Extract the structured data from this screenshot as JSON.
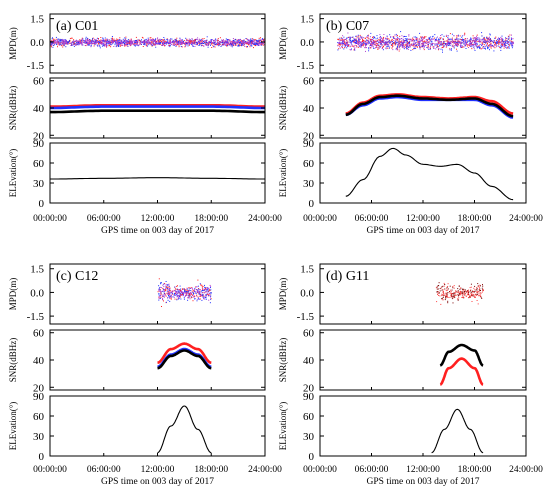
{
  "chart_data": [
    {
      "type": "scatter",
      "panel_label": "(a) C01",
      "xlabel": "GPS time on 003 day of 2017",
      "xticks": [
        "00:00:00",
        "06:00:00",
        "12:00:00",
        "18:00:00",
        "24:00:00"
      ],
      "xlim_hours": [
        0,
        24
      ],
      "subplots": [
        {
          "ylabel": "MPD(m)",
          "yticks": [
            "1.5",
            "0.0",
            "-1.5"
          ],
          "ylim": [
            -2.0,
            1.8
          ],
          "series": [
            {
              "color": "#ff2020",
              "span_hours": [
                0,
                24
              ],
              "center": 0.0,
              "spread": 0.25
            },
            {
              "color": "#2030ff",
              "span_hours": [
                0,
                24
              ],
              "center": 0.0,
              "spread": 0.25
            },
            {
              "color": "#b040d0",
              "span_hours": [
                0,
                24
              ],
              "center": 0.0,
              "spread": 0.2
            }
          ]
        },
        {
          "ylabel": "SNR(dBHz)",
          "yticks": [
            "60",
            "40",
            "20"
          ],
          "ylim": [
            18,
            62
          ],
          "series": [
            {
              "color": "#ff2020",
              "x": [
                0,
                6,
                12,
                18,
                24
              ],
              "y": [
                41,
                42,
                42,
                42,
                41
              ]
            },
            {
              "color": "#2030ff",
              "x": [
                0,
                6,
                12,
                18,
                24
              ],
              "y": [
                40,
                41,
                41,
                41,
                40
              ]
            },
            {
              "color": "#000000",
              "x": [
                0,
                6,
                12,
                18,
                24
              ],
              "y": [
                37,
                38,
                38,
                38,
                37
              ]
            }
          ]
        },
        {
          "ylabel": "ELEvation(°)",
          "yticks": [
            "90",
            "60",
            "30",
            "0"
          ],
          "ylim": [
            0,
            90
          ],
          "series": [
            {
              "color": "#000000",
              "x": [
                0,
                6,
                12,
                18,
                24
              ],
              "y": [
                36,
                37,
                38,
                37,
                36
              ]
            }
          ]
        }
      ]
    },
    {
      "type": "scatter",
      "panel_label": "(b) C07",
      "xlabel": "GPS time on 003 day of 2017",
      "xticks": [
        "00:00:00",
        "06:00:00",
        "12:00:00",
        "18:00:00",
        "24:00:00"
      ],
      "xlim_hours": [
        0,
        24
      ],
      "subplots": [
        {
          "ylabel": "MPD(m)",
          "yticks": [
            "1.5",
            "0.0",
            "-1.5"
          ],
          "ylim": [
            -2.0,
            1.8
          ],
          "series": [
            {
              "color": "#ff2020",
              "span_hours": [
                2,
                22.5
              ],
              "center": 0.0,
              "spread": 0.4
            },
            {
              "color": "#2030ff",
              "span_hours": [
                2,
                22.5
              ],
              "center": 0.0,
              "spread": 0.45
            },
            {
              "color": "#b040d0",
              "span_hours": [
                2,
                22.5
              ],
              "center": 0.0,
              "spread": 0.4
            }
          ]
        },
        {
          "ylabel": "SNR(dBHz)",
          "yticks": [
            "60",
            "40",
            "20"
          ],
          "ylim": [
            18,
            62
          ],
          "series": [
            {
              "color": "#ff2020",
              "x": [
                3,
                5,
                7,
                9,
                12,
                15,
                18,
                20,
                22.5
              ],
              "y": [
                36,
                44,
                49,
                50,
                48,
                47,
                48,
                45,
                36
              ]
            },
            {
              "color": "#2030ff",
              "x": [
                3,
                5,
                7,
                9,
                12,
                15,
                18,
                20,
                22.5
              ],
              "y": [
                35,
                42,
                47,
                48,
                46,
                46,
                46,
                42,
                33
              ]
            },
            {
              "color": "#000000",
              "x": [
                3,
                5,
                7,
                9,
                12,
                15,
                18,
                20,
                22.5
              ],
              "y": [
                35,
                43,
                48,
                49,
                47,
                46,
                47,
                43,
                34
              ]
            }
          ]
        },
        {
          "ylabel": "ELEvation(°)",
          "yticks": [
            "90",
            "60",
            "30",
            "0"
          ],
          "ylim": [
            0,
            90
          ],
          "series": [
            {
              "color": "#000000",
              "x": [
                3,
                5,
                7,
                8.5,
                10,
                12,
                14,
                16,
                18,
                20,
                22.5
              ],
              "y": [
                10,
                35,
                70,
                82,
                72,
                58,
                55,
                58,
                45,
                25,
                5
              ]
            }
          ]
        }
      ]
    },
    {
      "type": "scatter",
      "panel_label": "(c) C12",
      "xlabel": "GPS time on 003 day of 2017",
      "xticks": [
        "00:00:00",
        "06:00:00",
        "12:00:00",
        "18:00:00",
        "24:00:00"
      ],
      "xlim_hours": [
        0,
        24
      ],
      "subplots": [
        {
          "ylabel": "MPD(m)",
          "yticks": [
            "1.5",
            "0.0",
            "-1.5"
          ],
          "ylim": [
            -2.0,
            1.8
          ],
          "series": [
            {
              "color": "#ff2020",
              "span_hours": [
                12,
                18
              ],
              "center": 0.0,
              "spread": 0.45
            },
            {
              "color": "#2030ff",
              "span_hours": [
                12,
                18
              ],
              "center": 0.0,
              "spread": 0.45
            },
            {
              "color": "#b040d0",
              "span_hours": [
                12,
                18
              ],
              "center": 0.0,
              "spread": 0.4
            }
          ]
        },
        {
          "ylabel": "SNR(dBHz)",
          "yticks": [
            "60",
            "40",
            "20"
          ],
          "ylim": [
            18,
            62
          ],
          "series": [
            {
              "color": "#ff2020",
              "x": [
                12,
                13.5,
                15,
                16.5,
                18
              ],
              "y": [
                38,
                48,
                52,
                48,
                38
              ]
            },
            {
              "color": "#2030ff",
              "x": [
                12,
                13.5,
                15,
                16.5,
                18
              ],
              "y": [
                35,
                44,
                48,
                44,
                35
              ]
            },
            {
              "color": "#000000",
              "x": [
                12,
                13.5,
                15,
                16.5,
                18
              ],
              "y": [
                34,
                43,
                47,
                43,
                34
              ]
            }
          ]
        },
        {
          "ylabel": "ELEvation(°)",
          "yticks": [
            "90",
            "60",
            "30",
            "0"
          ],
          "ylim": [
            0,
            90
          ],
          "series": [
            {
              "color": "#000000",
              "x": [
                12,
                13.5,
                15,
                16.5,
                18
              ],
              "y": [
                5,
                45,
                75,
                40,
                5
              ]
            }
          ]
        }
      ]
    },
    {
      "type": "scatter",
      "panel_label": "(d) G11",
      "xlabel": "GPS time on 003 day of 2017",
      "xticks": [
        "00:00:00",
        "06:00:00",
        "12:00:00",
        "18:00:00",
        "24:00:00"
      ],
      "xlim_hours": [
        0,
        24
      ],
      "subplots": [
        {
          "ylabel": "MPD(m)",
          "yticks": [
            "1.5",
            "0.0",
            "-1.5"
          ],
          "ylim": [
            -2.0,
            1.8
          ],
          "series": [
            {
              "color": "#7a0000",
              "span_hours": [
                13.5,
                19
              ],
              "center": 0.0,
              "spread": 0.5
            },
            {
              "color": "#ff4040",
              "span_hours": [
                13.5,
                19
              ],
              "center": 0.0,
              "spread": 0.4
            }
          ]
        },
        {
          "ylabel": "SNR(dBHz)",
          "yticks": [
            "60",
            "40",
            "20"
          ],
          "ylim": [
            18,
            62
          ],
          "series": [
            {
              "color": "#000000",
              "x": [
                14,
                15,
                16.5,
                18,
                19
              ],
              "y": [
                36,
                46,
                51,
                47,
                36
              ]
            },
            {
              "color": "#ff2020",
              "x": [
                14,
                15,
                16.5,
                18,
                19
              ],
              "y": [
                22,
                34,
                41,
                34,
                22
              ]
            }
          ]
        },
        {
          "ylabel": "ELEvation(°)",
          "yticks": [
            "90",
            "60",
            "30",
            "0"
          ],
          "ylim": [
            0,
            90
          ],
          "series": [
            {
              "color": "#000000",
              "x": [
                13,
                14.5,
                16,
                17.5,
                19
              ],
              "y": [
                5,
                40,
                70,
                40,
                5
              ]
            }
          ]
        }
      ]
    }
  ]
}
